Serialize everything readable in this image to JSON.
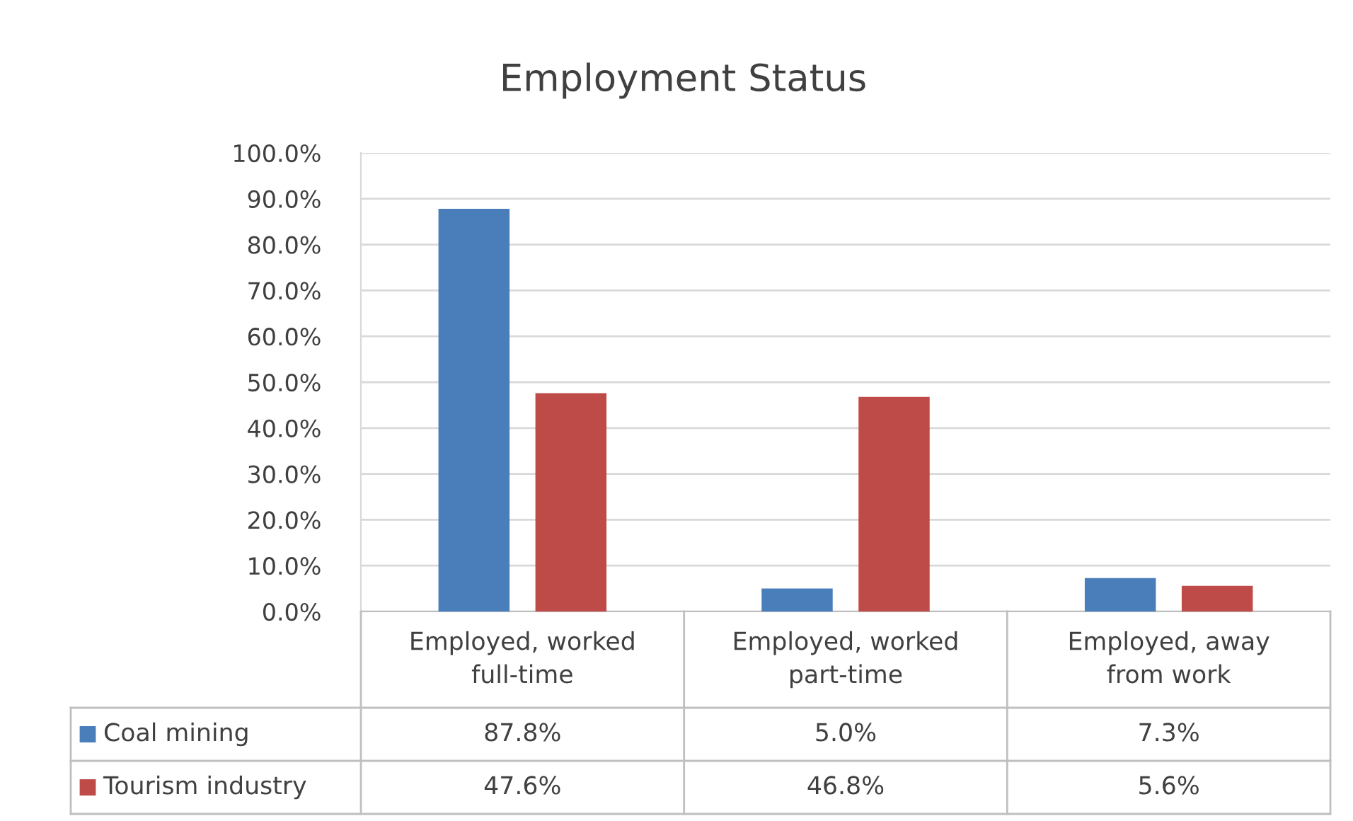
{
  "chart_data": {
    "type": "bar",
    "title": "Employment Status",
    "categories": [
      "Employed, worked\nfull-time",
      "Employed, worked\npart-time",
      "Employed, away\nfrom work"
    ],
    "series": [
      {
        "name": "Coal mining",
        "color": "#4a7ebb",
        "values": [
          87.8,
          5.0,
          7.3
        ],
        "value_labels": [
          "87.8%",
          "5.0%",
          "7.3%"
        ]
      },
      {
        "name": "Tourism industry",
        "color": "#be4b48",
        "values": [
          47.6,
          46.8,
          5.6
        ],
        "value_labels": [
          "47.6%",
          "46.8%",
          "5.6%"
        ]
      }
    ],
    "ylim": [
      0,
      100
    ],
    "yticks": [
      {
        "value": 0,
        "label": "0.0%"
      },
      {
        "value": 10,
        "label": "10.0%"
      },
      {
        "value": 20,
        "label": "20.0%"
      },
      {
        "value": 30,
        "label": "30.0%"
      },
      {
        "value": 40,
        "label": "40.0%"
      },
      {
        "value": 50,
        "label": "50.0%"
      },
      {
        "value": 60,
        "label": "60.0%"
      },
      {
        "value": 70,
        "label": "70.0%"
      },
      {
        "value": 80,
        "label": "80.0%"
      },
      {
        "value": 90,
        "label": "90.0%"
      },
      {
        "value": 100,
        "label": "100.0%"
      }
    ],
    "grid": "y",
    "legend": "bottom left"
  }
}
